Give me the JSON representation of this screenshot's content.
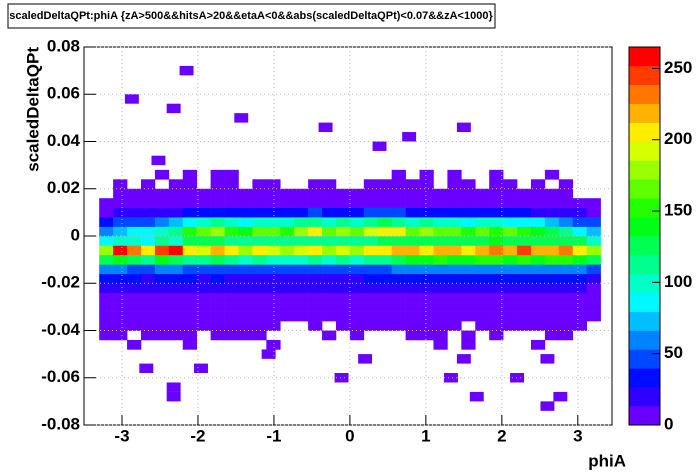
{
  "chart_data": {
    "type": "heatmap",
    "title": "scaledDeltaQPt:phiA {zA>500&&hitsA>20&&etaA<0&&abs(scaledDeltaQPt)<0.07&&zA<1000}",
    "x_label": "phiA",
    "y_label": "scaledDeltaQPt",
    "xlim": [
      -3.5,
      3.45
    ],
    "ylim": [
      -0.08,
      0.08
    ],
    "xticks": [
      -3,
      -2,
      -1,
      0,
      1,
      2,
      3
    ],
    "yticks": [
      -0.08,
      -0.06,
      -0.04,
      -0.02,
      0,
      0.02,
      0.04,
      0.06,
      0.08
    ],
    "x_range": [
      -3.3,
      3.3
    ],
    "y_range": [
      -0.048,
      0.028
    ],
    "zlim": [
      0,
      265
    ],
    "zticks": [
      0,
      50,
      100,
      150,
      200,
      250
    ],
    "colormap": "rainbow",
    "grid": true,
    "z": [
      [
        0,
        0,
        2,
        0,
        0,
        0,
        2,
        0,
        0,
        0,
        0,
        0,
        1,
        0,
        0,
        0,
        0,
        0,
        0,
        0,
        0,
        0,
        0,
        0,
        2,
        0,
        1,
        0,
        0,
        0,
        0,
        2,
        0,
        0,
        0,
        0
      ],
      [
        3,
        3,
        0,
        2,
        3,
        3,
        3,
        0,
        2,
        3,
        3,
        3,
        0,
        0,
        0,
        0,
        2,
        0,
        2,
        0,
        0,
        0,
        2,
        3,
        3,
        0,
        2,
        0,
        3,
        0,
        0,
        0,
        2,
        3,
        0,
        0
      ],
      [
        4,
        4,
        3,
        4,
        4,
        3,
        4,
        4,
        3,
        4,
        5,
        4,
        3,
        0,
        0,
        3,
        0,
        3,
        2,
        3,
        3,
        4,
        3,
        4,
        3,
        4,
        0,
        3,
        4,
        4,
        3,
        4,
        3,
        3,
        4,
        0
      ],
      [
        5,
        6,
        5,
        5,
        6,
        5,
        4,
        5,
        6,
        5,
        6,
        5,
        5,
        4,
        3,
        5,
        4,
        5,
        4,
        5,
        4,
        5,
        5,
        4,
        5,
        5,
        4,
        5,
        5,
        6,
        5,
        5,
        4,
        5,
        5,
        3
      ],
      [
        7,
        8,
        7,
        7,
        8,
        7,
        6,
        7,
        8,
        7,
        6,
        7,
        7,
        6,
        6,
        7,
        6,
        7,
        6,
        7,
        7,
        8,
        7,
        6,
        7,
        7,
        6,
        7,
        8,
        7,
        7,
        6,
        7,
        8,
        7,
        5
      ],
      [
        10,
        11,
        10,
        9,
        11,
        10,
        9,
        10,
        11,
        10,
        9,
        10,
        10,
        9,
        9,
        10,
        9,
        10,
        9,
        10,
        10,
        11,
        10,
        9,
        10,
        10,
        9,
        10,
        11,
        10,
        10,
        9,
        10,
        11,
        10,
        8
      ],
      [
        15,
        17,
        16,
        15,
        17,
        16,
        15,
        16,
        17,
        15,
        14,
        16,
        15,
        14,
        15,
        16,
        15,
        16,
        15,
        16,
        16,
        17,
        16,
        15,
        17,
        16,
        15,
        17,
        18,
        16,
        17,
        16,
        17,
        18,
        16,
        13
      ],
      [
        28,
        30,
        27,
        26,
        30,
        28,
        27,
        26,
        28,
        25,
        24,
        26,
        25,
        24,
        25,
        26,
        25,
        26,
        24,
        27,
        28,
        30,
        32,
        30,
        32,
        30,
        29,
        31,
        33,
        30,
        32,
        30,
        31,
        33,
        30,
        25
      ],
      [
        55,
        58,
        52,
        50,
        56,
        53,
        50,
        48,
        52,
        47,
        45,
        48,
        46,
        44,
        46,
        48,
        45,
        47,
        44,
        48,
        50,
        55,
        60,
        58,
        62,
        60,
        56,
        60,
        64,
        58,
        62,
        58,
        60,
        64,
        58,
        50
      ],
      [
        120,
        135,
        128,
        118,
        140,
        130,
        115,
        110,
        125,
        108,
        100,
        112,
        105,
        98,
        104,
        110,
        102,
        108,
        100,
        112,
        118,
        130,
        145,
        140,
        150,
        145,
        135,
        148,
        155,
        140,
        150,
        142,
        148,
        155,
        140,
        120
      ],
      [
        180,
        255,
        230,
        200,
        240,
        265,
        210,
        190,
        220,
        200,
        185,
        205,
        195,
        180,
        190,
        200,
        185,
        195,
        180,
        200,
        205,
        215,
        225,
        210,
        220,
        215,
        205,
        220,
        230,
        215,
        250,
        225,
        220,
        230,
        210,
        185
      ],
      [
        85,
        100,
        95,
        92,
        110,
        105,
        120,
        130,
        125,
        115,
        110,
        118,
        112,
        108,
        112,
        118,
        110,
        116,
        108,
        118,
        122,
        128,
        132,
        125,
        130,
        126,
        120,
        128,
        135,
        126,
        130,
        125,
        128,
        132,
        120,
        100
      ],
      [
        60,
        72,
        80,
        85,
        100,
        110,
        150,
        165,
        185,
        150,
        140,
        160,
        170,
        150,
        175,
        200,
        160,
        180,
        170,
        190,
        200,
        210,
        160,
        180,
        165,
        160,
        150,
        170,
        155,
        160,
        150,
        140,
        130,
        110,
        90,
        70
      ],
      [
        35,
        40,
        45,
        50,
        60,
        70,
        90,
        100,
        110,
        95,
        90,
        105,
        100,
        95,
        110,
        115,
        100,
        110,
        105,
        115,
        120,
        118,
        100,
        108,
        100,
        95,
        90,
        100,
        95,
        90,
        85,
        80,
        70,
        60,
        50,
        40
      ],
      [
        12,
        14,
        16,
        18,
        22,
        26,
        30,
        35,
        38,
        35,
        33,
        38,
        36,
        35,
        38,
        40,
        36,
        38,
        37,
        40,
        42,
        40,
        36,
        38,
        35,
        33,
        32,
        35,
        33,
        30,
        28,
        26,
        22,
        18,
        15,
        12
      ],
      [
        5,
        6,
        6,
        7,
        8,
        9,
        10,
        11,
        12,
        11,
        10,
        12,
        11,
        10,
        12,
        13,
        11,
        12,
        11,
        12,
        13,
        12,
        11,
        12,
        11,
        10,
        10,
        11,
        10,
        9,
        9,
        8,
        7,
        6,
        5,
        4
      ],
      [
        0,
        3,
        4,
        4,
        5,
        5,
        4,
        5,
        6,
        5,
        4,
        5,
        5,
        4,
        5,
        5,
        4,
        5,
        4,
        5,
        6,
        5,
        4,
        5,
        5,
        4,
        4,
        5,
        4,
        4,
        3,
        4,
        3,
        3,
        0,
        0
      ],
      [
        0,
        2,
        0,
        3,
        0,
        3,
        3,
        0,
        3,
        3,
        0,
        2,
        3,
        0,
        0,
        3,
        2,
        0,
        0,
        2,
        3,
        3,
        3,
        2,
        0,
        3,
        2,
        0,
        2,
        2,
        0,
        3,
        0,
        2,
        0,
        0
      ],
      [
        0,
        0,
        0,
        0,
        2,
        0,
        2,
        0,
        3,
        2,
        0,
        0,
        0,
        0,
        0,
        0,
        0,
        0,
        0,
        0,
        0,
        2,
        0,
        2,
        0,
        2,
        0,
        0,
        2,
        0,
        0,
        0,
        2,
        0,
        0,
        0
      ]
    ],
    "outliers": [
      {
        "x": -2.15,
        "y": 0.07,
        "value": 2
      },
      {
        "x": -2.87,
        "y": 0.058,
        "value": 2
      },
      {
        "x": -2.32,
        "y": 0.054,
        "value": 2
      },
      {
        "x": -1.43,
        "y": 0.05,
        "value": 2
      },
      {
        "x": -0.32,
        "y": 0.046,
        "value": 2
      },
      {
        "x": 1.5,
        "y": 0.046,
        "value": 2
      },
      {
        "x": 0.39,
        "y": 0.038,
        "value": 2
      },
      {
        "x": 0.78,
        "y": 0.042,
        "value": 2
      },
      {
        "x": -2.52,
        "y": 0.032,
        "value": 2
      },
      {
        "x": -1.07,
        "y": -0.05,
        "value": 2
      },
      {
        "x": 0.2,
        "y": -0.052,
        "value": 2
      },
      {
        "x": 1.5,
        "y": -0.052,
        "value": 2
      },
      {
        "x": 2.6,
        "y": -0.052,
        "value": 2
      },
      {
        "x": -2.68,
        "y": -0.056,
        "value": 2
      },
      {
        "x": -1.96,
        "y": -0.056,
        "value": 2
      },
      {
        "x": -0.11,
        "y": -0.06,
        "value": 2
      },
      {
        "x": 1.33,
        "y": -0.06,
        "value": 2
      },
      {
        "x": 2.2,
        "y": -0.06,
        "value": 2
      },
      {
        "x": -2.32,
        "y": -0.064,
        "value": 2
      },
      {
        "x": -2.32,
        "y": -0.068,
        "value": 2
      },
      {
        "x": 1.67,
        "y": -0.068,
        "value": 2
      },
      {
        "x": 2.77,
        "y": -0.068,
        "value": 2
      },
      {
        "x": 2.6,
        "y": -0.072,
        "value": 2
      }
    ]
  }
}
